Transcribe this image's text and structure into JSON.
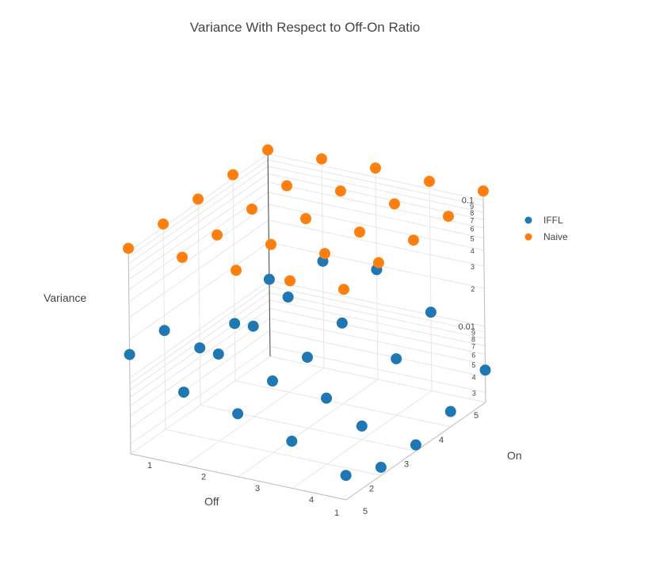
{
  "chart_data": {
    "type": "scatter3d",
    "title": "Variance With Respect to Off-On Ratio",
    "axes": {
      "x": {
        "label": "Off",
        "ticks": [
          "1",
          "2",
          "3",
          "4",
          "5"
        ],
        "range": [
          1,
          5
        ]
      },
      "y": {
        "label": "On",
        "ticks": [
          "1",
          "2",
          "3",
          "4",
          "5"
        ],
        "range": [
          1,
          5
        ]
      },
      "z": {
        "label": "Variance",
        "scale": "log",
        "range": [
          0.0025,
          0.11
        ],
        "ticks": [
          {
            "value": 0.003,
            "label": "3"
          },
          {
            "value": 0.004,
            "label": "4"
          },
          {
            "value": 0.005,
            "label": "5"
          },
          {
            "value": 0.006,
            "label": "6"
          },
          {
            "value": 0.007,
            "label": "7"
          },
          {
            "value": 0.008,
            "label": "8"
          },
          {
            "value": 0.009,
            "label": "9"
          },
          {
            "value": 0.01,
            "label": "0.01"
          },
          {
            "value": 0.02,
            "label": "2"
          },
          {
            "value": 0.03,
            "label": "3"
          },
          {
            "value": 0.04,
            "label": "4"
          },
          {
            "value": 0.05,
            "label": "5"
          },
          {
            "value": 0.06,
            "label": "6"
          },
          {
            "value": 0.07,
            "label": "7"
          },
          {
            "value": 0.08,
            "label": "8"
          },
          {
            "value": 0.09,
            "label": "9"
          },
          {
            "value": 0.1,
            "label": "0.1"
          }
        ]
      }
    },
    "legend": {
      "position": "right"
    },
    "series": [
      {
        "name": "IFFL",
        "color": "#1f77b4",
        "points": [
          {
            "off": 5,
            "on": 5,
            "variance": 0.0045
          },
          {
            "off": 5,
            "on": 4,
            "variance": 0.0105
          },
          {
            "off": 5,
            "on": 3,
            "variance": 0.0185
          },
          {
            "off": 5,
            "on": 2,
            "variance": 0.0175
          },
          {
            "off": 5,
            "on": 1,
            "variance": 0.0102
          },
          {
            "off": 4,
            "on": 5,
            "variance": 0.0033
          },
          {
            "off": 4,
            "on": 4,
            "variance": 0.007
          },
          {
            "off": 4,
            "on": 3,
            "variance": 0.0109
          },
          {
            "off": 4,
            "on": 2,
            "variance": 0.0142
          },
          {
            "off": 4,
            "on": 1,
            "variance": 0.0071
          },
          {
            "off": 3,
            "on": 5,
            "variance": 0.0028
          },
          {
            "off": 3,
            "on": 4,
            "variance": 0.0032
          },
          {
            "off": 3,
            "on": 3,
            "variance": 0.0091
          },
          {
            "off": 3,
            "on": 2,
            "variance": 0.013
          },
          {
            "off": 3,
            "on": 1,
            "variance": 0.0071
          },
          {
            "off": 2,
            "on": 5,
            "variance": 0.0029
          },
          {
            "off": 2,
            "on": 4,
            "variance": 0.0083
          },
          {
            "off": 2,
            "on": 3,
            "variance": 0.0092
          },
          {
            "off": 2,
            "on": 2,
            "variance": 0.0122
          },
          {
            "off": 2,
            "on": 1,
            "variance": 0.0152
          },
          {
            "off": 1,
            "on": 5,
            "variance": 0.0039
          },
          {
            "off": 1,
            "on": 4,
            "variance": 0.0059
          },
          {
            "off": 1,
            "on": 3,
            "variance": 0.0079
          },
          {
            "off": 1,
            "on": 2,
            "variance": 0.0095
          },
          {
            "off": 1,
            "on": 1,
            "variance": 0.0153
          }
        ]
      },
      {
        "name": "Naive",
        "color": "#ff7f0e",
        "points": [
          {
            "off": 5,
            "on": 5,
            "variance": 0.118
          },
          {
            "off": 5,
            "on": 4,
            "variance": 0.114
          },
          {
            "off": 5,
            "on": 3,
            "variance": 0.118
          },
          {
            "off": 5,
            "on": 2,
            "variance": 0.113
          },
          {
            "off": 5,
            "on": 1,
            "variance": 0.108
          },
          {
            "off": 4,
            "on": 5,
            "variance": 0.116
          },
          {
            "off": 4,
            "on": 4,
            "variance": 0.118
          },
          {
            "off": 4,
            "on": 3,
            "variance": 0.121
          },
          {
            "off": 4,
            "on": 2,
            "variance": 0.108
          },
          {
            "off": 4,
            "on": 1,
            "variance": 0.107
          },
          {
            "off": 3,
            "on": 5,
            "variance": 0.117
          },
          {
            "off": 3,
            "on": 4,
            "variance": 0.11
          },
          {
            "off": 3,
            "on": 3,
            "variance": 0.114
          },
          {
            "off": 3,
            "on": 2,
            "variance": 0.11
          },
          {
            "off": 3,
            "on": 1,
            "variance": 0.107
          },
          {
            "off": 2,
            "on": 5,
            "variance": 0.121
          },
          {
            "off": 2,
            "on": 4,
            "variance": 0.116
          },
          {
            "off": 2,
            "on": 3,
            "variance": 0.111
          },
          {
            "off": 2,
            "on": 2,
            "variance": 0.107
          },
          {
            "off": 2,
            "on": 1,
            "variance": 0.106
          },
          {
            "off": 1,
            "on": 5,
            "variance": 0.116
          },
          {
            "off": 1,
            "on": 4,
            "variance": 0.11
          },
          {
            "off": 1,
            "on": 3,
            "variance": 0.108
          },
          {
            "off": 1,
            "on": 2,
            "variance": 0.111
          },
          {
            "off": 1,
            "on": 1,
            "variance": 0.106
          }
        ]
      }
    ]
  }
}
